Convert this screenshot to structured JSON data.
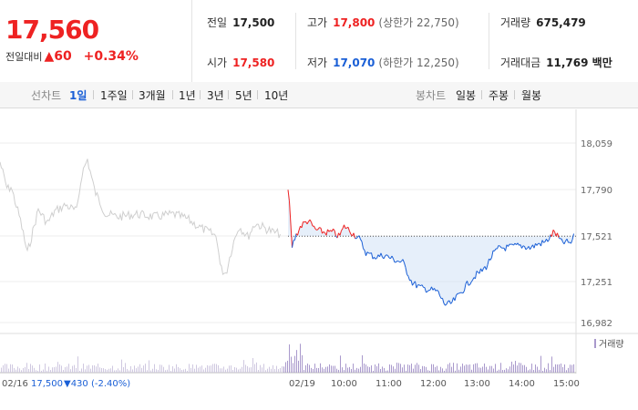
{
  "summary": {
    "price": "17,560",
    "change_label": "전일대비",
    "change_arrow": "▲",
    "change_value": "60",
    "change_pct": "+0.34%"
  },
  "stats": {
    "prev_label": "전일",
    "prev_value": "17,500",
    "open_label": "시가",
    "open_value": "17,580",
    "high_label": "고가",
    "high_value": "17,800",
    "upper_limit": "(상한가 22,750)",
    "low_label": "저가",
    "low_value": "17,070",
    "lower_limit": "(하한가 12,250)",
    "volume_label": "거래량",
    "volume_value": "675,479",
    "amount_label": "거래대금",
    "amount_value": "11,769 백만"
  },
  "tabs": {
    "line_label": "선차트",
    "line_items": [
      "1일",
      "1주일",
      "3개월",
      "1년",
      "3년",
      "5년",
      "10년"
    ],
    "active": "1일",
    "candle_label": "봉차트",
    "candle_items": [
      "일봉",
      "주봉",
      "월봉"
    ]
  },
  "chart": {
    "y_ticks": [
      "18,059",
      "17,790",
      "17,521",
      "17,251",
      "16,982"
    ],
    "x_ticks": [
      "02/19",
      "10:00",
      "11:00",
      "12:00",
      "13:00",
      "14:00",
      "15:00"
    ],
    "prev_date": "02/16",
    "prev_close": "17,500",
    "prev_change": "▼430",
    "prev_pct": "(-2.40%)",
    "volume_legend": "거래량",
    "colors": {
      "up": "#e22",
      "down": "#1a5fd6",
      "prev": "#cfcfcf",
      "volume": "#a999cc"
    }
  },
  "chart_data": {
    "type": "line",
    "ylim": [
      16982,
      18059
    ],
    "baseline": 17500
  }
}
